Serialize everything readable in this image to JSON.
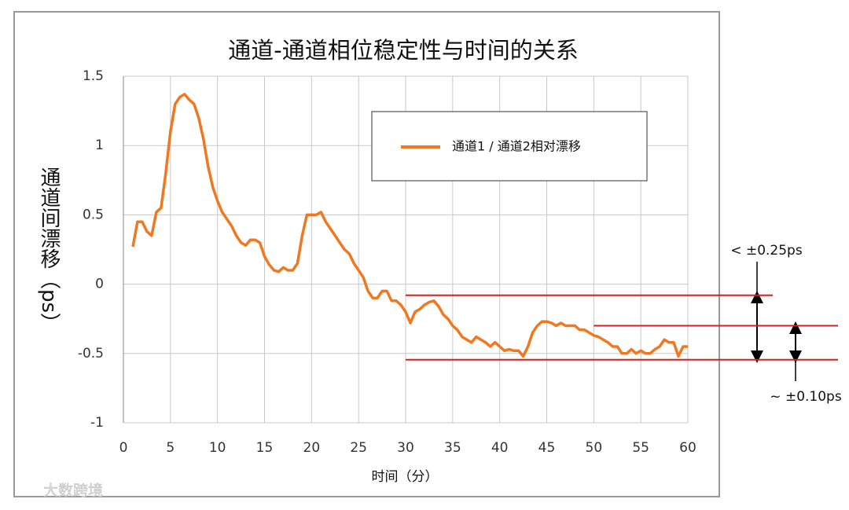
{
  "chart_data": {
    "type": "line",
    "title": "通道-通道相位稳定性与时间的关系",
    "x_label": "时间（分）",
    "y_label": "通道间漂移（ps）",
    "x": [
      1,
      1.5,
      2,
      2.5,
      3,
      3.5,
      4,
      4.5,
      5,
      5.5,
      6,
      6.5,
      7,
      7.5,
      8,
      8.5,
      9,
      9.5,
      10,
      10.5,
      11,
      11.5,
      12,
      12.5,
      13,
      13.5,
      14,
      14.5,
      15,
      15.5,
      16,
      16.5,
      17,
      17.5,
      18,
      18.5,
      19,
      19.5,
      20,
      20.5,
      21,
      21.5,
      22,
      22.5,
      23,
      23.5,
      24,
      24.5,
      25,
      25.5,
      26,
      26.5,
      27,
      27.5,
      28,
      28.5,
      29,
      29.5,
      30,
      30.5,
      31,
      31.5,
      32,
      32.5,
      33,
      33.5,
      34,
      34.5,
      35,
      35.5,
      36,
      36.5,
      37,
      37.5,
      38,
      38.5,
      39,
      39.5,
      40,
      40.5,
      41,
      41.5,
      42,
      42.5,
      43,
      43.5,
      44,
      44.5,
      45,
      45.5,
      46,
      46.5,
      47,
      47.5,
      48,
      48.5,
      49,
      49.5,
      50,
      50.5,
      51,
      51.5,
      52,
      52.5,
      53,
      53.5,
      54,
      54.5,
      55,
      55.5,
      56,
      56.5,
      57,
      57.5,
      58,
      58.5,
      59,
      59.5,
      60
    ],
    "series": [
      {
        "name": "通道1 / 通道2相对漂移",
        "color": "#f07820",
        "values": [
          0.27,
          0.45,
          0.45,
          0.38,
          0.35,
          0.52,
          0.55,
          0.8,
          1.1,
          1.3,
          1.35,
          1.37,
          1.33,
          1.3,
          1.2,
          1.05,
          0.85,
          0.7,
          0.6,
          0.52,
          0.47,
          0.42,
          0.35,
          0.3,
          0.28,
          0.32,
          0.32,
          0.3,
          0.2,
          0.14,
          0.1,
          0.09,
          0.12,
          0.1,
          0.1,
          0.15,
          0.35,
          0.5,
          0.5,
          0.5,
          0.52,
          0.45,
          0.4,
          0.35,
          0.3,
          0.25,
          0.22,
          0.15,
          0.1,
          0.05,
          -0.05,
          -0.1,
          -0.1,
          -0.05,
          -0.05,
          -0.12,
          -0.12,
          -0.15,
          -0.2,
          -0.28,
          -0.2,
          -0.18,
          -0.15,
          -0.13,
          -0.12,
          -0.16,
          -0.22,
          -0.25,
          -0.3,
          -0.33,
          -0.38,
          -0.4,
          -0.42,
          -0.38,
          -0.4,
          -0.42,
          -0.45,
          -0.42,
          -0.45,
          -0.48,
          -0.47,
          -0.48,
          -0.48,
          -0.52,
          -0.45,
          -0.35,
          -0.3,
          -0.27,
          -0.27,
          -0.28,
          -0.3,
          -0.28,
          -0.3,
          -0.3,
          -0.3,
          -0.33,
          -0.33,
          -0.35,
          -0.37,
          -0.38,
          -0.4,
          -0.42,
          -0.45,
          -0.45,
          -0.5,
          -0.5,
          -0.47,
          -0.5,
          -0.48,
          -0.5,
          -0.5,
          -0.47,
          -0.45,
          -0.4,
          -0.42,
          -0.42,
          -0.52,
          -0.45,
          -0.45
        ]
      }
    ],
    "xlim": [
      0,
      60
    ],
    "xticks": [
      0,
      5,
      10,
      15,
      20,
      25,
      30,
      35,
      40,
      45,
      50,
      55,
      60
    ],
    "ylim": [
      -1,
      1.5
    ],
    "yticks": [
      1.5,
      1,
      0.5,
      0,
      -0.5,
      -1
    ],
    "grid": true,
    "reference_lines": [
      {
        "value": -0.08,
        "x_start": 30
      },
      {
        "value": -0.3,
        "x_start": 50
      },
      {
        "value": -0.545,
        "x_start": 30
      }
    ],
    "reference_color": "#d42020",
    "annotations": [
      "< ±0.25ps",
      "~ ±0.10ps"
    ],
    "watermark": "大数跨境"
  }
}
